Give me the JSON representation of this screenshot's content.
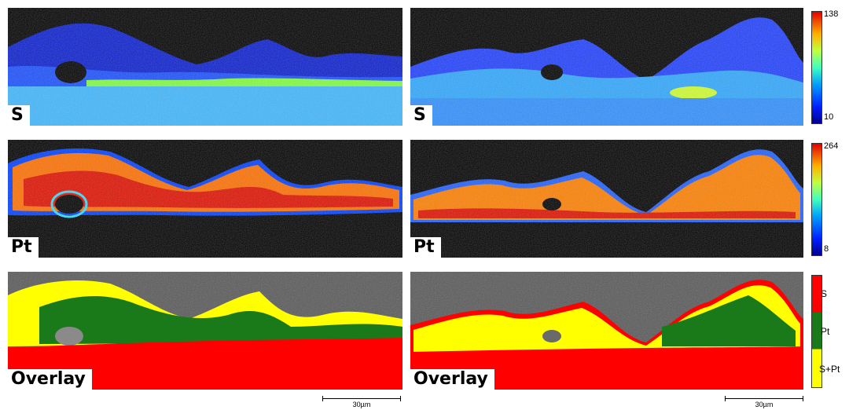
{
  "panels": {
    "left_s_label": "S",
    "right_s_label": "S",
    "left_pt_label": "Pt",
    "right_pt_label": "Pt",
    "left_overlay_label": "Overlay",
    "right_overlay_label": "Overlay"
  },
  "colorbars": {
    "s": {
      "max": "138",
      "min": "10"
    },
    "pt": {
      "max": "264",
      "min": "8"
    },
    "overlay": {
      "s": "S",
      "pt": "Pt",
      "spt": "S+Pt"
    }
  },
  "scalebar": {
    "left": "30µm",
    "right": "30µm"
  },
  "colors": {
    "jet_dark": "#00008f",
    "jet_blue": "#0060ff",
    "jet_cyan": "#40e0ff",
    "jet_yellow": "#ffee00",
    "jet_orange": "#ff8000",
    "jet_red": "#e00000",
    "overlay_red": "#ff0000",
    "overlay_green": "#1a7a1a",
    "overlay_yellow": "#ffff00",
    "sem_gray": "#555555"
  }
}
